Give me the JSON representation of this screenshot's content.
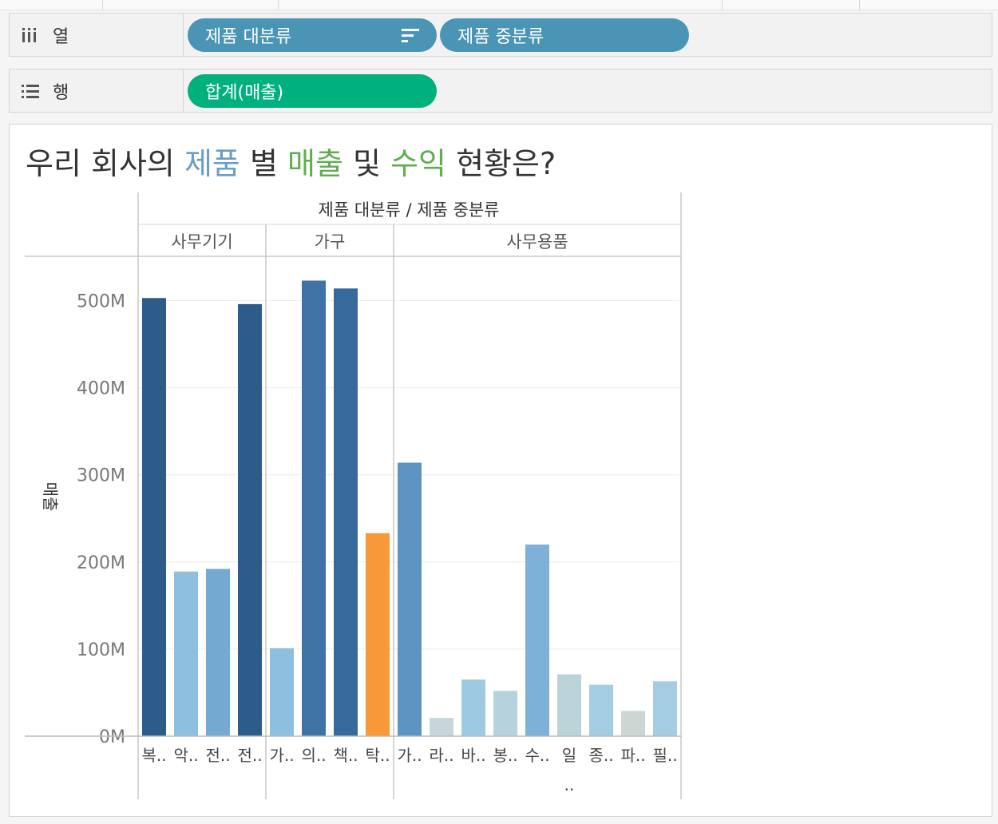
{
  "shelves": {
    "columns": {
      "label": "열",
      "pills": [
        {
          "text": "제품 대분류",
          "sorted": true
        },
        {
          "text": "제품 중분류",
          "sorted": false
        }
      ]
    },
    "rows": {
      "label": "행",
      "pills": [
        {
          "text": "합계(매출)"
        }
      ]
    }
  },
  "title": {
    "parts": [
      {
        "text": "우리 회사의 ",
        "color": "#333333"
      },
      {
        "text": "제품",
        "color": "#6a9ec7"
      },
      {
        "text": " 별 ",
        "color": "#333333"
      },
      {
        "text": "매출",
        "color": "#5fae4e"
      },
      {
        "text": " 및 ",
        "color": "#333333"
      },
      {
        "text": "수익",
        "color": "#5fae4e"
      },
      {
        "text": " 현황은?",
        "color": "#333333"
      }
    ]
  },
  "chart_data": {
    "type": "bar",
    "header_title": "제품 대분류 / 제품 중분류",
    "ylabel": "매출",
    "ylim": [
      0,
      550
    ],
    "yticks": [
      {
        "value": 0,
        "label": "0M"
      },
      {
        "value": 100,
        "label": "100M"
      },
      {
        "value": 200,
        "label": "200M"
      },
      {
        "value": 300,
        "label": "300M"
      },
      {
        "value": 400,
        "label": "400M"
      },
      {
        "value": 500,
        "label": "500M"
      }
    ],
    "groups": [
      {
        "name": "사무기기",
        "bars": [
          {
            "label": "복..",
            "value": 503,
            "color": "#2b5c8a"
          },
          {
            "label": "악..",
            "value": 189,
            "color": "#8dc0df"
          },
          {
            "label": "전..",
            "value": 192,
            "color": "#74a9d1"
          },
          {
            "label": "전..",
            "value": 496,
            "color": "#2b5c8a"
          }
        ]
      },
      {
        "name": "가구",
        "bars": [
          {
            "label": "가..",
            "value": 101,
            "color": "#8dc0df"
          },
          {
            "label": "의..",
            "value": 523,
            "color": "#3f73a6"
          },
          {
            "label": "책..",
            "value": 514,
            "color": "#37699c"
          },
          {
            "label": "탁..",
            "value": 233,
            "color": "#f89939"
          }
        ]
      },
      {
        "name": "사무용품",
        "bars": [
          {
            "label": "가..",
            "value": 314,
            "color": "#5e94c2"
          },
          {
            "label": "라..",
            "value": 21,
            "color": "#c7d6d9"
          },
          {
            "label": "바..",
            "value": 65,
            "color": "#9dcae2"
          },
          {
            "label": "봉..",
            "value": 52,
            "color": "#b6d2dc"
          },
          {
            "label": "수..",
            "value": 220,
            "color": "#7db1d7"
          },
          {
            "label": "일\n..",
            "value": 71,
            "color": "#b9d3d9"
          },
          {
            "label": "종..",
            "value": 59,
            "color": "#a4cde4"
          },
          {
            "label": "파..",
            "value": 29,
            "color": "#ced6d4"
          },
          {
            "label": "필..",
            "value": 63,
            "color": "#a4cde4"
          }
        ]
      }
    ]
  }
}
